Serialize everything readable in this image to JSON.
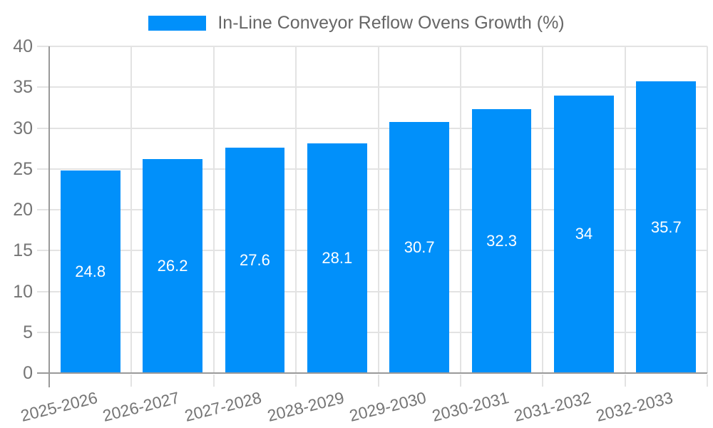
{
  "chart_data": {
    "type": "bar",
    "title": "In-Line Conveyor Reflow Ovens Growth (%)",
    "legend": {
      "label": "In-Line Conveyor Reflow Ovens Growth (%)",
      "position": "top-center"
    },
    "categories": [
      "2025-2026",
      "2026-2027",
      "2027-2028",
      "2028-2029",
      "2029-2030",
      "2030-2031",
      "2031-2032",
      "2032-2033"
    ],
    "values": [
      24.8,
      26.2,
      27.6,
      28.1,
      30.7,
      32.3,
      34,
      35.7
    ],
    "value_labels": [
      "24.8",
      "26.2",
      "27.6",
      "28.1",
      "30.7",
      "32.3",
      "34",
      "35.7"
    ],
    "xlabel": "",
    "ylabel": "",
    "ylim": [
      0,
      40
    ],
    "ytick_step": 5,
    "ytick_labels": [
      "0",
      "5",
      "10",
      "15",
      "20",
      "25",
      "30",
      "35",
      "40"
    ],
    "grid": true,
    "x_label_rotation_deg": -14,
    "colors": {
      "bar": "#0190fa",
      "legend_text": "#666666",
      "tick_text": "#757575",
      "grid_line": "#e3e3e3",
      "axis_line": "#9a9a9a",
      "value_text": "#ffffff"
    }
  }
}
